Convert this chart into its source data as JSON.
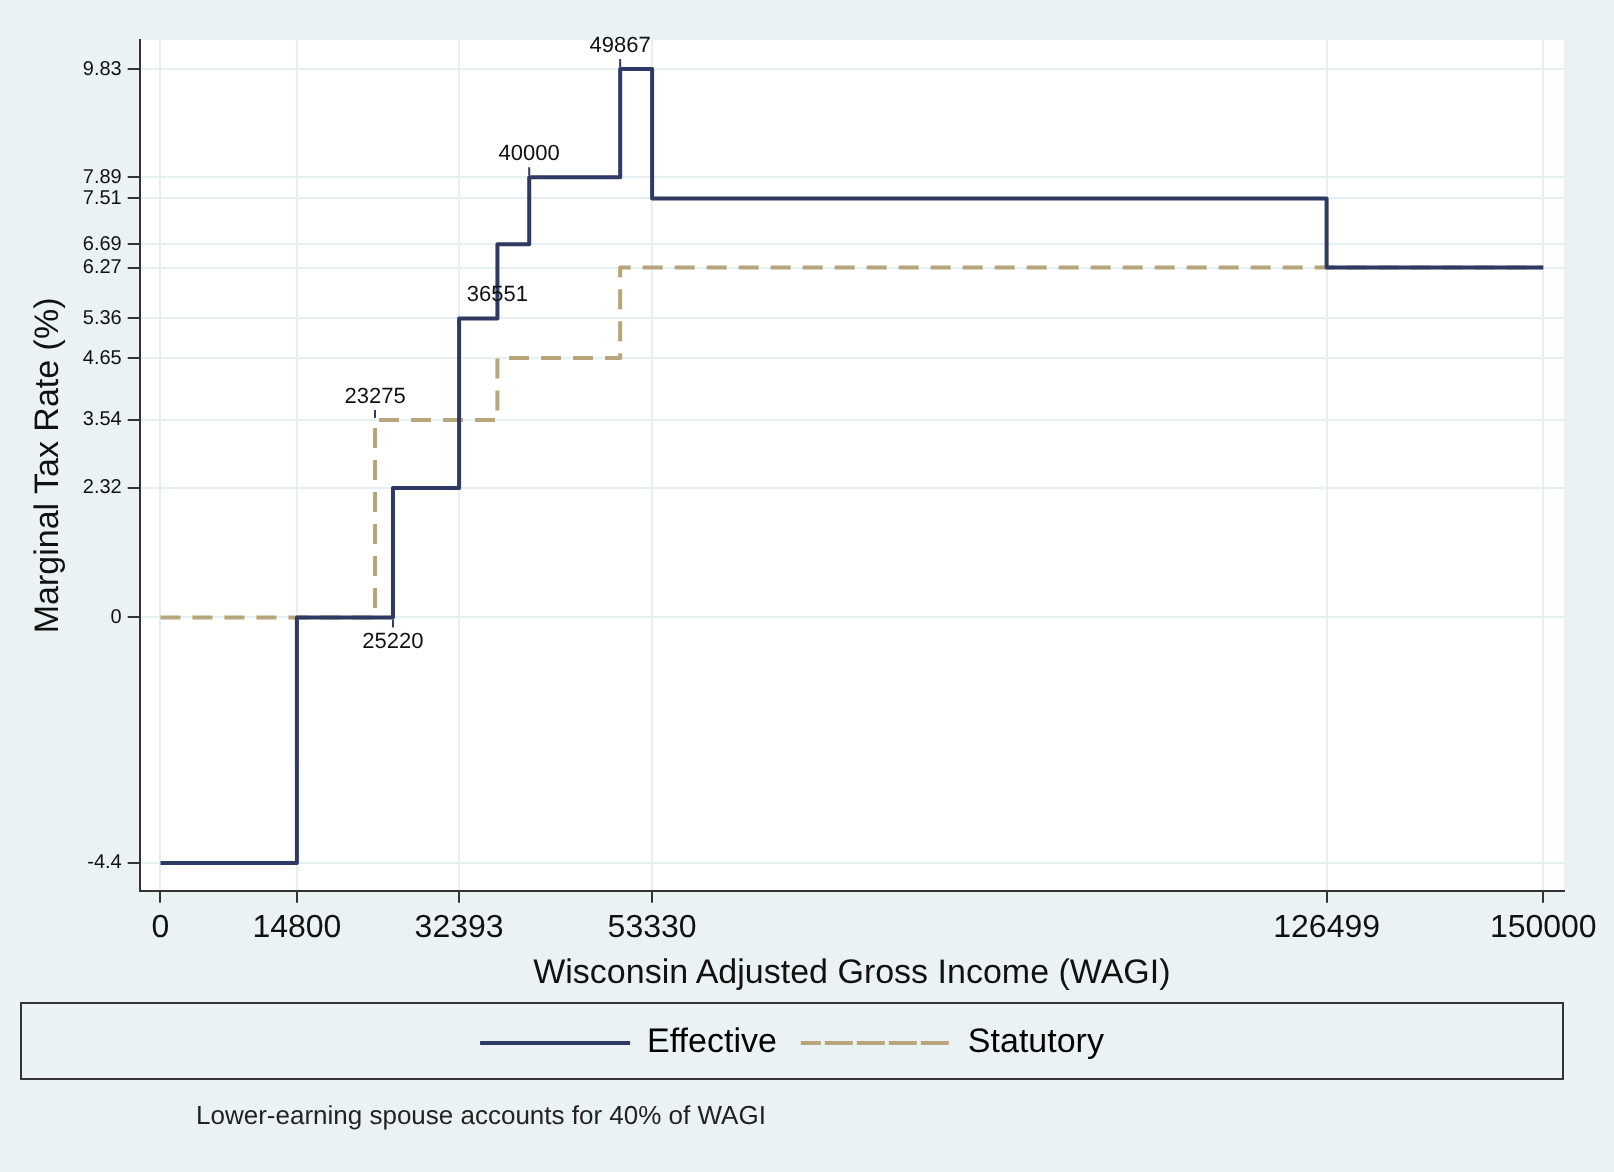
{
  "chart_data": {
    "type": "step",
    "xlabel": "Wisconsin Adjusted Gross Income (WAGI)",
    "ylabel": "Marginal Tax Rate (%)",
    "xlim": [
      -2250,
      152250
    ],
    "ylim": [
      -4.9,
      10.35
    ],
    "xticks": [
      0,
      14800,
      32393,
      53330,
      126499,
      150000
    ],
    "yticks": [
      -4.4,
      0,
      2.32,
      3.54,
      4.65,
      5.36,
      6.27,
      6.69,
      7.51,
      7.89,
      9.83
    ],
    "grid": true,
    "legend": "bottom",
    "marker": "none",
    "series": [
      {
        "name": "Effective",
        "color": "#2e3a63",
        "line_style": "solid",
        "x": [
          0,
          14800,
          25220,
          32393,
          36551,
          40000,
          49867,
          53330,
          126499,
          150000
        ],
        "values": [
          -4.4,
          0,
          2.32,
          5.36,
          6.69,
          7.89,
          9.83,
          7.51,
          6.27,
          6.27
        ]
      },
      {
        "name": "Statutory",
        "color": "#b8a57c",
        "line_style": "dashed",
        "x": [
          0,
          23275,
          36551,
          49867,
          150000
        ],
        "values": [
          0,
          3.54,
          4.65,
          6.27,
          6.27
        ]
      }
    ],
    "annotations": [
      {
        "text": "25220",
        "x": 25220,
        "y": 0
      },
      {
        "text": "23275",
        "x": 23275,
        "y": 3.54
      },
      {
        "text": "36551",
        "x": 36551,
        "y": 5.36
      },
      {
        "text": "40000",
        "x": 40000,
        "y": 7.89
      },
      {
        "text": "49867",
        "x": 49867,
        "y": 9.83
      },
      "Lower-earning spouse accounts for 40% of WAGI"
    ]
  }
}
